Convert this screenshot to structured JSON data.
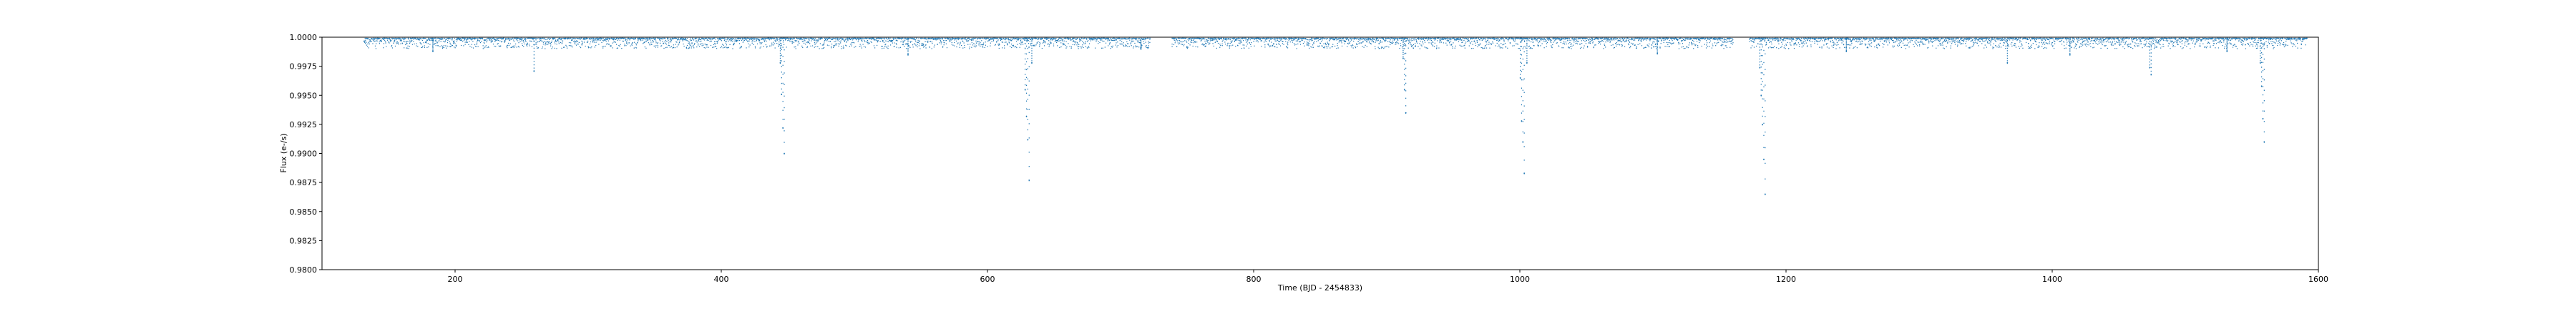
{
  "chart_data": {
    "type": "scatter",
    "title": "",
    "xlabel": "Time (BJD - 2454833)",
    "ylabel": "Flux (e-/s)",
    "xlim": [
      100,
      1600
    ],
    "ylim": [
      0.98,
      1.0
    ],
    "xticks": [
      200,
      400,
      600,
      800,
      1000,
      1200,
      1400,
      1600
    ],
    "xtick_labels": [
      "200",
      "400",
      "600",
      "800",
      "1000",
      "1200",
      "1400",
      "1600"
    ],
    "yticks": [
      0.98,
      0.9825,
      0.985,
      0.9875,
      0.99,
      0.9925,
      0.995,
      0.9975,
      1.0
    ],
    "ytick_labels": [
      "0.9800",
      "0.9825",
      "0.9850",
      "0.9875",
      "0.9900",
      "0.9925",
      "0.9950",
      "0.9975",
      "1.0000"
    ],
    "grid": false,
    "legend": "none",
    "series": [
      {
        "color": "#1f77b4",
        "baseline": {
          "x_range": [
            131,
            1591
          ],
          "y": 0.99995
        },
        "gaps": [
          [
            722,
            738
          ],
          [
            1160,
            1172
          ]
        ],
        "dips": [
          {
            "x": 183,
            "y": 0.9988
          },
          {
            "x": 259,
            "y": 0.9971
          },
          {
            "x": 444,
            "y": 0.9978
          },
          {
            "x": 445,
            "y": 0.9951
          },
          {
            "x": 446,
            "y": 0.9922
          },
          {
            "x": 447,
            "y": 0.99
          },
          {
            "x": 540,
            "y": 0.9985
          },
          {
            "x": 628,
            "y": 0.9955
          },
          {
            "x": 629,
            "y": 0.9932
          },
          {
            "x": 630,
            "y": 0.9912
          },
          {
            "x": 631,
            "y": 0.9877
          },
          {
            "x": 633,
            "y": 0.9978
          },
          {
            "x": 715,
            "y": 0.999
          },
          {
            "x": 912,
            "y": 0.9982
          },
          {
            "x": 913,
            "y": 0.9955
          },
          {
            "x": 914,
            "y": 0.9935
          },
          {
            "x": 1000,
            "y": 0.9965
          },
          {
            "x": 1001,
            "y": 0.9928
          },
          {
            "x": 1002,
            "y": 0.991
          },
          {
            "x": 1003,
            "y": 0.9883
          },
          {
            "x": 1005,
            "y": 0.9978
          },
          {
            "x": 1103,
            "y": 0.9986
          },
          {
            "x": 1180,
            "y": 0.9974
          },
          {
            "x": 1181,
            "y": 0.995
          },
          {
            "x": 1182,
            "y": 0.9925
          },
          {
            "x": 1183,
            "y": 0.9895
          },
          {
            "x": 1184,
            "y": 0.9865
          },
          {
            "x": 1245,
            "y": 0.9988
          },
          {
            "x": 1366,
            "y": 0.9978
          },
          {
            "x": 1413,
            "y": 0.9985
          },
          {
            "x": 1473,
            "y": 0.9974
          },
          {
            "x": 1474,
            "y": 0.9968
          },
          {
            "x": 1531,
            "y": 0.9988
          },
          {
            "x": 1556,
            "y": 0.9978
          },
          {
            "x": 1557,
            "y": 0.9958
          },
          {
            "x": 1558,
            "y": 0.993
          },
          {
            "x": 1559,
            "y": 0.991
          }
        ]
      }
    ]
  }
}
